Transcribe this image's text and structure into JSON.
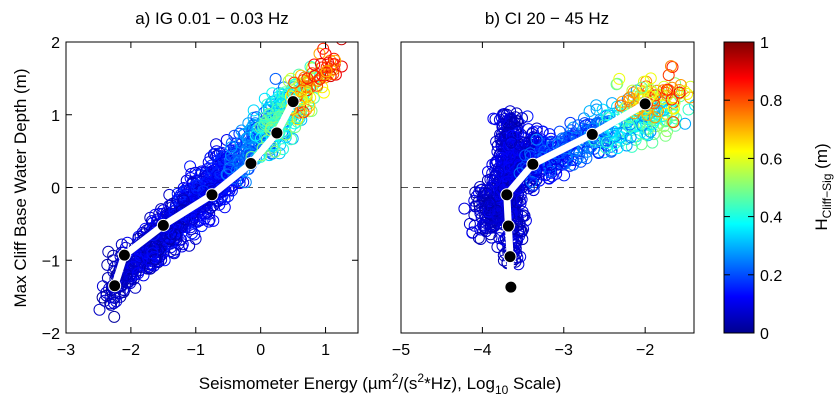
{
  "figure": {
    "xlabel_main": "Seismometer Energy  (µm",
    "xlabel_sup1": "2",
    "xlabel_mid": "/(s",
    "xlabel_sup2": "2",
    "xlabel_tail": "*Hz), Log",
    "xlabel_sub": "10",
    "xlabel_end": " Scale)",
    "ylabel": "Max Cliff Base Water Depth (m)"
  },
  "colorbar": {
    "label_main": "H",
    "label_sub": "Cliff−Sig",
    "label_unit": " (m)",
    "range": [
      0,
      1
    ],
    "ticks": [
      0,
      0.2,
      0.4,
      0.6,
      0.8,
      1
    ],
    "tick_labels": [
      "0",
      "0.2",
      "0.4",
      "0.6",
      "0.8",
      "1"
    ],
    "colormap": "jet"
  },
  "chart_data": [
    {
      "type": "scatter",
      "title": "a) IG 0.01 − 0.03  Hz",
      "xlim": [
        -3,
        1.5
      ],
      "ylim": [
        -2,
        2
      ],
      "xticks": [
        -3,
        -2,
        -1,
        0,
        1
      ],
      "xtick_labels": [
        "−3",
        "−2",
        "−1",
        "0",
        "1"
      ],
      "yticks": [
        -2,
        -1,
        0,
        1,
        2
      ],
      "ytick_labels": [
        "−2",
        "−1",
        "0",
        "1",
        "2"
      ],
      "zero_line": 0,
      "marker": "open circles colored by H",
      "binned_mean_line": [
        {
          "x": -2.25,
          "y": -1.35
        },
        {
          "x": -2.1,
          "y": -0.93
        },
        {
          "x": -1.5,
          "y": -0.52
        },
        {
          "x": -0.75,
          "y": -0.1
        },
        {
          "x": -0.15,
          "y": 0.33
        },
        {
          "x": 0.25,
          "y": 0.75
        },
        {
          "x": 0.5,
          "y": 1.18
        }
      ],
      "clusters": [
        {
          "x0": -2.35,
          "x1": -1.8,
          "ya": -1.35,
          "yb": 0.5,
          "sx": 0.22,
          "sy": 0.18,
          "c0": 0.02,
          "c1": 0.12,
          "n": 140
        },
        {
          "x0": -1.8,
          "x1": -0.4,
          "ya": 0.45,
          "yb": 0.55,
          "sx": 0.28,
          "sy": 0.2,
          "c0": 0.03,
          "c1": 0.18,
          "n": 700
        },
        {
          "x0": -0.4,
          "x1": 0.4,
          "ya": 0.55,
          "yb": 0.5,
          "sx": 0.2,
          "sy": 0.22,
          "c0": 0.15,
          "c1": 0.35,
          "n": 220
        },
        {
          "x0": 0.0,
          "x1": 0.8,
          "ya": 0.55,
          "yb": 0.55,
          "sx": 0.2,
          "sy": 0.25,
          "c0": 0.3,
          "c1": 0.6,
          "n": 150
        },
        {
          "x0": 0.5,
          "x1": 1.15,
          "ya": 0.5,
          "yb": 0.5,
          "sx": 0.2,
          "sy": 0.2,
          "c0": 0.55,
          "c1": 0.95,
          "n": 70
        }
      ]
    },
    {
      "type": "scatter",
      "title": "b) CI 20 − 45  Hz",
      "xlim": [
        -5,
        -1.4
      ],
      "ylim": [
        -2,
        2
      ],
      "xticks": [
        -5,
        -4,
        -3,
        -2
      ],
      "xtick_labels": [
        "−5",
        "−4",
        "−3",
        "−2"
      ],
      "zero_line": 0,
      "marker": "open circles colored by H",
      "binned_mean_line": [
        {
          "x": -3.65,
          "y": -1.37
        },
        {
          "x": -3.66,
          "y": -0.95
        },
        {
          "x": -3.68,
          "y": -0.53
        },
        {
          "x": -3.7,
          "y": -0.1
        },
        {
          "x": -3.38,
          "y": 0.32
        },
        {
          "x": -2.65,
          "y": 0.73
        },
        {
          "x": -2.0,
          "y": 1.15
        }
      ],
      "clusters": [
        {
          "x0": -3.65,
          "x1": -3.65,
          "ya": -1.0,
          "yb": 1.0,
          "sx": 0.18,
          "sy": 0.0,
          "c0": 0.03,
          "c1": 0.12,
          "n": 350
        },
        {
          "x0": -4.0,
          "x1": -3.3,
          "ya": -0.4,
          "yb": 0.6,
          "sx": 0.25,
          "sy": 0.25,
          "c0": 0.03,
          "c1": 0.15,
          "n": 450
        },
        {
          "x0": -3.4,
          "x1": -2.5,
          "ya": 0.3,
          "yb": 0.8,
          "sx": 0.25,
          "sy": 0.18,
          "c0": 0.08,
          "c1": 0.3,
          "n": 250
        },
        {
          "x0": -2.6,
          "x1": -1.6,
          "ya": 0.75,
          "yb": 1.1,
          "sx": 0.25,
          "sy": 0.2,
          "c0": 0.2,
          "c1": 0.55,
          "n": 160
        },
        {
          "x0": -2.3,
          "x1": -1.5,
          "ya": 1.15,
          "yb": 1.35,
          "sx": 0.2,
          "sy": 0.2,
          "c0": 0.45,
          "c1": 0.9,
          "n": 80
        }
      ]
    }
  ]
}
